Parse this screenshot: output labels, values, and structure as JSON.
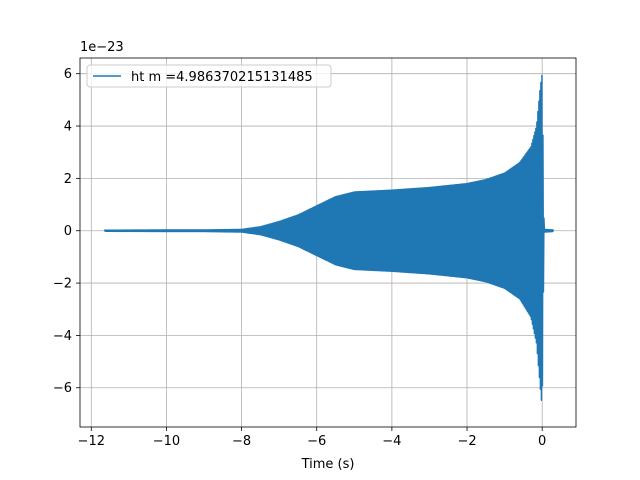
{
  "chart_data": {
    "type": "line",
    "title": "",
    "xlabel": "Time (s)",
    "ylabel": "",
    "y_offset_text": "1e−23",
    "xlim": [
      -12.3,
      0.9
    ],
    "ylim": [
      -7.5,
      6.6
    ],
    "x_ticks": [
      -12,
      -10,
      -8,
      -6,
      -4,
      -2,
      0
    ],
    "x_tick_labels": [
      "−12",
      "−10",
      "−8",
      "−6",
      "−4",
      "−2",
      "0"
    ],
    "y_ticks": [
      -6,
      -4,
      -2,
      0,
      2,
      4,
      6
    ],
    "y_tick_labels": [
      "−6",
      "−4",
      "−2",
      "0",
      "2",
      "4",
      "6"
    ],
    "grid": true,
    "legend_position": "top-left",
    "series": [
      {
        "name": "ht m =4.986370215131485",
        "color": "#1f77b4",
        "x_start": -11.65,
        "x_end": 0.3,
        "merger_time": 0.0,
        "envelope": {
          "x": [
            -11.65,
            -10.0,
            -9.0,
            -8.0,
            -7.5,
            -7.0,
            -6.5,
            -6.0,
            -5.5,
            -5.0,
            -4.0,
            -3.0,
            -2.0,
            -1.5,
            -1.0,
            -0.6,
            -0.3,
            -0.15,
            -0.05,
            0.0,
            0.05,
            0.3
          ],
          "upper": [
            0.02,
            0.03,
            0.03,
            0.05,
            0.15,
            0.35,
            0.6,
            0.95,
            1.3,
            1.48,
            1.55,
            1.65,
            1.8,
            1.95,
            2.2,
            2.6,
            3.2,
            4.0,
            5.5,
            6.0,
            0.05,
            0.03
          ],
          "lower": [
            -0.02,
            -0.03,
            -0.03,
            -0.05,
            -0.15,
            -0.35,
            -0.6,
            -0.95,
            -1.3,
            -1.48,
            -1.55,
            -1.65,
            -1.8,
            -1.95,
            -2.2,
            -2.6,
            -3.3,
            -4.3,
            -6.0,
            -6.8,
            -0.05,
            -0.03
          ]
        }
      }
    ]
  }
}
